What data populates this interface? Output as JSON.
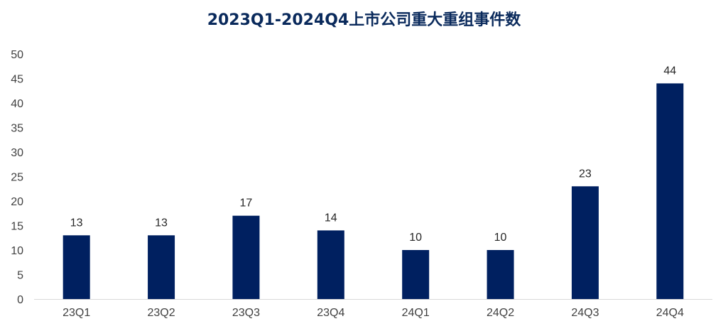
{
  "chart_data": {
    "type": "bar",
    "title": "2023Q1-2024Q4上市公司重大重组事件数",
    "categories": [
      "23Q1",
      "23Q2",
      "23Q3",
      "23Q4",
      "24Q1",
      "24Q2",
      "24Q3",
      "24Q4"
    ],
    "values": [
      13,
      13,
      17,
      14,
      10,
      10,
      23,
      44
    ],
    "xlabel": "",
    "ylabel": "",
    "ylim": [
      0,
      50
    ],
    "yticks": [
      0,
      5,
      10,
      15,
      20,
      25,
      30,
      35,
      40,
      45,
      50
    ],
    "grid": false,
    "legend": "none",
    "data_labels": true,
    "bar_color": "#002060"
  }
}
